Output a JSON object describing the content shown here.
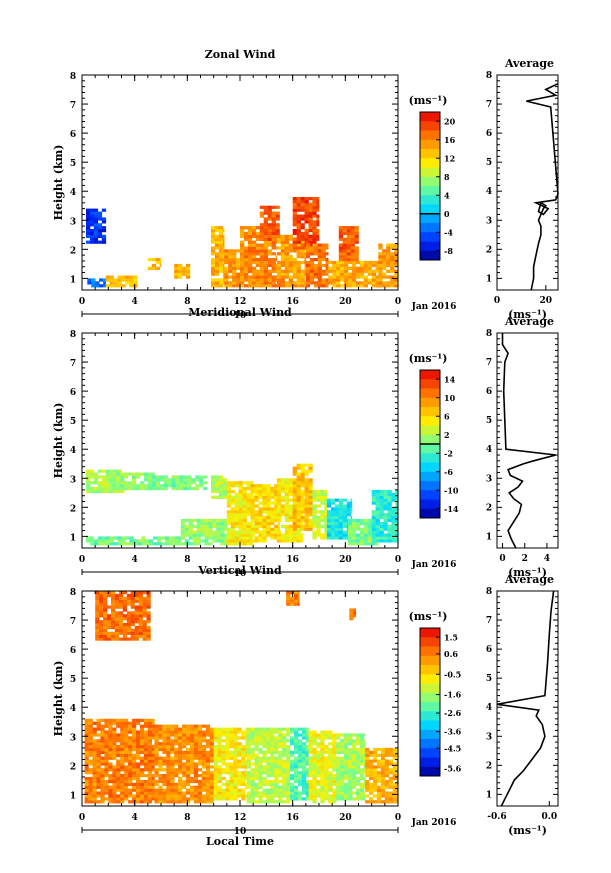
{
  "figure": {
    "date_label": "Jan 2016",
    "time_axis_title": "Local Time",
    "day_label": "10",
    "height_axis_title": "Height (km)",
    "average_title": "Average",
    "unit_label": "(ms⁻¹)"
  },
  "chart_data": [
    {
      "type": "heatmap",
      "title": "Zonal Wind",
      "xlabel": "",
      "ylabel": "Height (km)",
      "x_ticks": [
        "0",
        "4",
        "8",
        "12",
        "16",
        "20",
        "0"
      ],
      "xlim": [
        0,
        24
      ],
      "ylim": [
        0.6,
        8
      ],
      "y_ticks": [
        "1",
        "2",
        "3",
        "4",
        "5",
        "6",
        "7",
        "8"
      ],
      "colorbar": {
        "ticks": [
          "20",
          "16",
          "12",
          "8",
          "4",
          "0",
          "-4",
          "-8"
        ],
        "min": -10,
        "max": 22,
        "contour": 0,
        "colormap": "jet"
      },
      "blocks": [
        {
          "t": [
            0.3,
            1.8
          ],
          "h": [
            2.2,
            3.4
          ],
          "v": -6
        },
        {
          "t": [
            0.4,
            1.8
          ],
          "h": [
            0.7,
            1.0
          ],
          "v": -3
        },
        {
          "t": [
            1.8,
            4.2
          ],
          "h": [
            0.7,
            1.1
          ],
          "v": 13
        },
        {
          "t": [
            5.0,
            6.0
          ],
          "h": [
            1.3,
            1.7
          ],
          "v": 13
        },
        {
          "t": [
            7.0,
            8.2
          ],
          "h": [
            1.0,
            1.5
          ],
          "v": 14
        },
        {
          "t": [
            9.8,
            10.8
          ],
          "h": [
            0.7,
            2.8
          ],
          "v": 14
        },
        {
          "t": [
            10.8,
            12.8
          ],
          "h": [
            0.7,
            2.0
          ],
          "v": 15
        },
        {
          "t": [
            12.0,
            14.8
          ],
          "h": [
            0.7,
            2.8
          ],
          "v": 16
        },
        {
          "t": [
            13.5,
            15.0
          ],
          "h": [
            2.3,
            3.5
          ],
          "v": 18
        },
        {
          "t": [
            14.8,
            17.0
          ],
          "h": [
            0.7,
            2.5
          ],
          "v": 15
        },
        {
          "t": [
            16.0,
            18.0
          ],
          "h": [
            2.0,
            3.8
          ],
          "v": 19
        },
        {
          "t": [
            17.0,
            18.7
          ],
          "h": [
            0.7,
            2.2
          ],
          "v": 17
        },
        {
          "t": [
            18.7,
            22.5
          ],
          "h": [
            0.7,
            1.6
          ],
          "v": 14
        },
        {
          "t": [
            19.5,
            21.0
          ],
          "h": [
            1.6,
            2.8
          ],
          "v": 18
        },
        {
          "t": [
            22.5,
            24.0
          ],
          "h": [
            0.7,
            2.2
          ],
          "v": 15
        }
      ],
      "profile": {
        "xlim": [
          0,
          25
        ],
        "x_ticks": [
          "0",
          "20"
        ],
        "xlabel": "(ms⁻¹)",
        "x": [
          14,
          15,
          15,
          16,
          17,
          18,
          18,
          17,
          18,
          19,
          20,
          18,
          17,
          19,
          21,
          16,
          24,
          25,
          22,
          12,
          24,
          20,
          25
        ],
        "h": [
          0.6,
          1.0,
          1.4,
          1.8,
          2.2,
          2.5,
          2.8,
          3.0,
          3.2,
          3.4,
          3.5,
          3.6,
          3.3,
          3.2,
          3.4,
          3.6,
          3.7,
          3.9,
          6.9,
          7.1,
          7.3,
          7.5,
          7.7
        ]
      }
    },
    {
      "type": "heatmap",
      "title": "Meridional Wind",
      "xlabel": "",
      "ylabel": "Height (km)",
      "x_ticks": [
        "0",
        "4",
        "8",
        "12",
        "16",
        "20",
        "0"
      ],
      "xlim": [
        0,
        24
      ],
      "ylim": [
        0.6,
        8
      ],
      "y_ticks": [
        "1",
        "2",
        "3",
        "4",
        "5",
        "6",
        "7",
        "8"
      ],
      "colorbar": {
        "ticks": [
          "14",
          "10",
          "6",
          "2",
          "-2",
          "-6",
          "-10",
          "-14"
        ],
        "min": -16,
        "max": 16,
        "contour": 0,
        "colormap": "jet"
      },
      "blocks": [
        {
          "t": [
            0.3,
            3.2
          ],
          "h": [
            2.5,
            3.3
          ],
          "v": 2
        },
        {
          "t": [
            2.0,
            5.5
          ],
          "h": [
            2.6,
            3.2
          ],
          "v": 1
        },
        {
          "t": [
            5.0,
            9.5
          ],
          "h": [
            2.6,
            3.1
          ],
          "v": 0
        },
        {
          "t": [
            0.3,
            7.5
          ],
          "h": [
            0.7,
            1.0
          ],
          "v": 0
        },
        {
          "t": [
            7.5,
            11.0
          ],
          "h": [
            0.7,
            1.6
          ],
          "v": 1
        },
        {
          "t": [
            9.8,
            11.0
          ],
          "h": [
            2.3,
            3.1
          ],
          "v": 2
        },
        {
          "t": [
            11.0,
            13.0
          ],
          "h": [
            0.7,
            2.9
          ],
          "v": 5
        },
        {
          "t": [
            12.8,
            15.0
          ],
          "h": [
            0.8,
            2.8
          ],
          "v": 6
        },
        {
          "t": [
            14.8,
            16.8
          ],
          "h": [
            0.8,
            3.0
          ],
          "v": 5
        },
        {
          "t": [
            16.0,
            17.5
          ],
          "h": [
            1.2,
            3.5
          ],
          "v": 7
        },
        {
          "t": [
            17.5,
            18.6
          ],
          "h": [
            0.9,
            2.6
          ],
          "v": 3
        },
        {
          "t": [
            18.6,
            20.5
          ],
          "h": [
            0.9,
            2.3
          ],
          "v": -4
        },
        {
          "t": [
            20.2,
            22.5
          ],
          "h": [
            0.7,
            1.6
          ],
          "v": 0
        },
        {
          "t": [
            22.0,
            24.0
          ],
          "h": [
            0.8,
            2.6
          ],
          "v": -3
        }
      ],
      "profile": {
        "xlim": [
          -0.5,
          5
        ],
        "x_ticks": [
          "0",
          "2",
          "4"
        ],
        "xlabel": "(ms⁻¹)",
        "x": [
          1.2,
          0.8,
          0.5,
          1.0,
          1.5,
          1.7,
          1.0,
          0.6,
          1.4,
          1.8,
          0.7,
          0.5,
          1.9,
          2.8,
          4.8,
          0.3,
          0.1,
          0.2,
          0.5,
          0.0,
          0.0
        ],
        "h": [
          0.6,
          0.9,
          1.2,
          1.5,
          1.8,
          2.1,
          2.3,
          2.5,
          2.7,
          2.9,
          3.1,
          3.3,
          3.5,
          3.6,
          3.8,
          4.0,
          6.0,
          7.0,
          7.3,
          7.6,
          8.0
        ]
      }
    },
    {
      "type": "heatmap",
      "title": "Vertical Wind",
      "xlabel": "Local Time",
      "ylabel": "Height (km)",
      "x_ticks": [
        "0",
        "4",
        "8",
        "12",
        "16",
        "20",
        "0"
      ],
      "xlim": [
        0,
        24
      ],
      "ylim": [
        0.6,
        8
      ],
      "y_ticks": [
        "1",
        "2",
        "3",
        "4",
        "5",
        "6",
        "7",
        "8"
      ],
      "colorbar": {
        "ticks": [
          "1.5",
          "0.6",
          "-0.5",
          "-1.6",
          "-2.6",
          "-3.6",
          "-4.5",
          "-5.6"
        ],
        "min": -6,
        "max": 2,
        "contour": null,
        "colormap": "jet"
      },
      "blocks": [
        {
          "t": [
            0.2,
            5.5
          ],
          "h": [
            0.7,
            3.6
          ],
          "v": 0.6
        },
        {
          "t": [
            5.5,
            10.0
          ],
          "h": [
            0.7,
            3.4
          ],
          "v": 0.4
        },
        {
          "t": [
            10.0,
            12.5
          ],
          "h": [
            0.8,
            3.3
          ],
          "v": -0.8
        },
        {
          "t": [
            12.5,
            15.8
          ],
          "h": [
            0.7,
            3.3
          ],
          "v": -1.4
        },
        {
          "t": [
            15.8,
            17.2
          ],
          "h": [
            0.8,
            3.3
          ],
          "v": -2.4
        },
        {
          "t": [
            17.2,
            19.3
          ],
          "h": [
            0.7,
            3.2
          ],
          "v": -1.0
        },
        {
          "t": [
            19.3,
            21.5
          ],
          "h": [
            0.8,
            3.1
          ],
          "v": -1.6
        },
        {
          "t": [
            21.5,
            24.0
          ],
          "h": [
            0.7,
            2.6
          ],
          "v": 0.0
        },
        {
          "t": [
            1.0,
            5.2
          ],
          "h": [
            6.3,
            8.0
          ],
          "v": 0.8
        },
        {
          "t": [
            15.5,
            16.5
          ],
          "h": [
            7.5,
            8.0
          ],
          "v": 0.7
        },
        {
          "t": [
            20.3,
            20.8
          ],
          "h": [
            7.0,
            7.4
          ],
          "v": 0.7
        }
      ],
      "profile": {
        "xlim": [
          -0.6,
          0.1
        ],
        "x_ticks": [
          "-0.6",
          "0.0"
        ],
        "xlabel": "(ms⁻¹)",
        "x": [
          -0.55,
          -0.5,
          -0.45,
          -0.4,
          -0.3,
          -0.2,
          -0.1,
          -0.05,
          -0.08,
          -0.15,
          -0.12,
          -0.6,
          -0.05,
          -0.02,
          0.0,
          0.02,
          0.05
        ],
        "h": [
          0.6,
          0.9,
          1.2,
          1.5,
          1.8,
          2.2,
          2.6,
          3.0,
          3.4,
          3.7,
          3.9,
          4.1,
          4.4,
          5.5,
          6.5,
          7.3,
          8.0
        ]
      }
    }
  ]
}
